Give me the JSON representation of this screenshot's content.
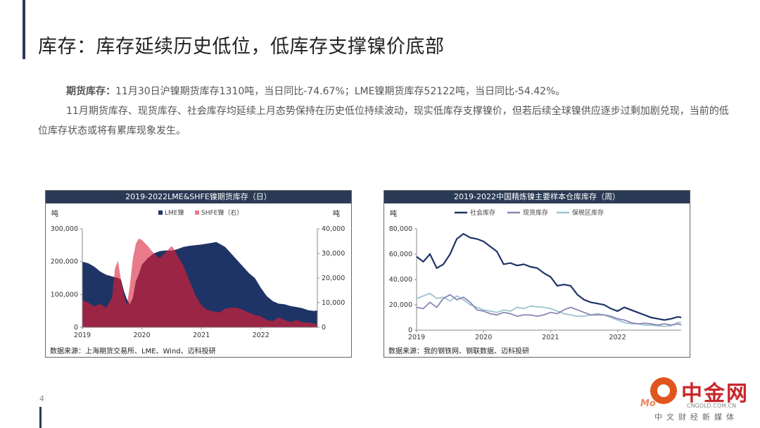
{
  "page": {
    "title": "库存：库存延续历史低位，低库存支撑镍价底部",
    "page_number": "4",
    "paragraph1_label": "期货库存：",
    "paragraph1_text": "11月30日沪镍期货库存1310吨，当日同比-74.67%；LME镍期货库存52122吨，当日同比-54.42%。",
    "paragraph2_text": "11月期货库存、现货库存、社会库存均延续上月态势保持在历史低位持续波动，现实低库存支撑镍价，但若后续全球镍供应逐步过剩加剧兑现，当前的低位库存状态或将有累库现象发生。"
  },
  "watermark": {
    "name": "中金网",
    "url": "CNGOLD.COM.CN",
    "subtitle": "中文财经新媒体",
    "overlay": "Mo"
  },
  "colors": {
    "header": "#2b3a55",
    "lme": "#1f3466",
    "shfe": "#e87a8a",
    "overlap": "#9a2545",
    "social": "#1f3466",
    "spot": "#8a86b6",
    "bonded": "#9ec3cf"
  },
  "chart_data": [
    {
      "type": "area",
      "title": "2019-2022LME&SHFE镍期货库存（日）",
      "source": "数据来源：上海期货交易所、LME、Wind、迈科投研",
      "left_unit": "吨",
      "right_unit": "吨",
      "x_range": [
        2019.0,
        2022.95
      ],
      "x_ticks": [
        2019,
        2020,
        2021,
        2022
      ],
      "y_left": {
        "range": [
          0,
          300000
        ],
        "ticks": [
          0,
          100000,
          200000,
          300000
        ],
        "tick_labels": [
          "0",
          "100,000",
          "200,000",
          "300,000"
        ]
      },
      "y_right": {
        "range": [
          0,
          40000
        ],
        "ticks": [
          0,
          10000,
          20000,
          30000,
          40000
        ],
        "tick_labels": [
          "0",
          "10,000",
          "20,000",
          "30,000",
          "40,000"
        ]
      },
      "legend": [
        "LME镍",
        "SHFE镍（右）"
      ],
      "series": [
        {
          "name": "LME镍",
          "axis": "left",
          "points": [
            [
              2019.0,
              200000
            ],
            [
              2019.1,
              195000
            ],
            [
              2019.2,
              185000
            ],
            [
              2019.3,
              170000
            ],
            [
              2019.4,
              160000
            ],
            [
              2019.5,
              155000
            ],
            [
              2019.6,
              150000
            ],
            [
              2019.65,
              145000
            ],
            [
              2019.7,
              110000
            ],
            [
              2019.75,
              85000
            ],
            [
              2019.8,
              70000
            ],
            [
              2019.85,
              90000
            ],
            [
              2019.9,
              140000
            ],
            [
              2019.95,
              160000
            ],
            [
              2020.0,
              190000
            ],
            [
              2020.1,
              210000
            ],
            [
              2020.2,
              225000
            ],
            [
              2020.3,
              232000
            ],
            [
              2020.4,
              234000
            ],
            [
              2020.5,
              233000
            ],
            [
              2020.6,
              238000
            ],
            [
              2020.7,
              245000
            ],
            [
              2020.8,
              248000
            ],
            [
              2020.9,
              250000
            ],
            [
              2021.0,
              252000
            ],
            [
              2021.1,
              255000
            ],
            [
              2021.2,
              258000
            ],
            [
              2021.25,
              260000
            ],
            [
              2021.3,
              255000
            ],
            [
              2021.4,
              245000
            ],
            [
              2021.5,
              225000
            ],
            [
              2021.6,
              205000
            ],
            [
              2021.7,
              185000
            ],
            [
              2021.8,
              165000
            ],
            [
              2021.9,
              150000
            ],
            [
              2022.0,
              120000
            ],
            [
              2022.1,
              95000
            ],
            [
              2022.2,
              80000
            ],
            [
              2022.3,
              72000
            ],
            [
              2022.4,
              70000
            ],
            [
              2022.5,
              65000
            ],
            [
              2022.6,
              62000
            ],
            [
              2022.7,
              58000
            ],
            [
              2022.8,
              52000
            ],
            [
              2022.9,
              50000
            ],
            [
              2022.95,
              52000
            ]
          ]
        },
        {
          "name": "SHFE镍（右）",
          "axis": "right",
          "points": [
            [
              2019.0,
              11000
            ],
            [
              2019.1,
              10000
            ],
            [
              2019.2,
              8500
            ],
            [
              2019.3,
              9500
            ],
            [
              2019.4,
              8000
            ],
            [
              2019.5,
              12000
            ],
            [
              2019.55,
              24000
            ],
            [
              2019.6,
              27000
            ],
            [
              2019.65,
              19000
            ],
            [
              2019.7,
              13000
            ],
            [
              2019.75,
              9000
            ],
            [
              2019.8,
              17000
            ],
            [
              2019.85,
              28000
            ],
            [
              2019.9,
              34000
            ],
            [
              2019.95,
              36000
            ],
            [
              2020.0,
              35500
            ],
            [
              2020.1,
              33000
            ],
            [
              2020.2,
              30000
            ],
            [
              2020.3,
              28000
            ],
            [
              2020.4,
              30500
            ],
            [
              2020.5,
              33000
            ],
            [
              2020.55,
              31500
            ],
            [
              2020.6,
              29000
            ],
            [
              2020.7,
              25000
            ],
            [
              2020.8,
              19000
            ],
            [
              2020.9,
              13000
            ],
            [
              2021.0,
              9000
            ],
            [
              2021.1,
              7000
            ],
            [
              2021.2,
              6500
            ],
            [
              2021.3,
              6000
            ],
            [
              2021.4,
              7500
            ],
            [
              2021.5,
              8000
            ],
            [
              2021.6,
              8000
            ],
            [
              2021.7,
              7000
            ],
            [
              2021.8,
              6000
            ],
            [
              2021.9,
              5000
            ],
            [
              2022.0,
              4500
            ],
            [
              2022.1,
              3000
            ],
            [
              2022.2,
              2500
            ],
            [
              2022.3,
              4000
            ],
            [
              2022.4,
              3000
            ],
            [
              2022.5,
              2000
            ],
            [
              2022.6,
              3000
            ],
            [
              2022.7,
              2000
            ],
            [
              2022.8,
              2000
            ],
            [
              2022.9,
              1500
            ],
            [
              2022.95,
              1310
            ]
          ]
        }
      ]
    },
    {
      "type": "line",
      "title": "2019-2022中国精炼镍主要样本仓库库存（周）",
      "source": "数据来源：我的钢铁网、钢联数据、迈科投研",
      "left_unit": "吨",
      "x_range": [
        2019.0,
        2022.95
      ],
      "x_ticks": [
        2019,
        2020,
        2021,
        2022
      ],
      "y_left": {
        "range": [
          0,
          80000
        ],
        "ticks": [
          0,
          20000,
          40000,
          60000,
          80000
        ],
        "tick_labels": [
          "0",
          "20,000",
          "40,000",
          "60,000",
          "80,000"
        ]
      },
      "legend": [
        "社会库存",
        "现货库存",
        "保税区库存"
      ],
      "series": [
        {
          "name": "社会库存",
          "points": [
            [
              2019.0,
              58000
            ],
            [
              2019.1,
              54000
            ],
            [
              2019.2,
              60000
            ],
            [
              2019.3,
              49000
            ],
            [
              2019.4,
              52000
            ],
            [
              2019.5,
              60000
            ],
            [
              2019.6,
              72000
            ],
            [
              2019.7,
              76000
            ],
            [
              2019.8,
              73000
            ],
            [
              2019.9,
              72000
            ],
            [
              2020.0,
              70000
            ],
            [
              2020.1,
              66000
            ],
            [
              2020.2,
              62000
            ],
            [
              2020.3,
              52000
            ],
            [
              2020.4,
              53000
            ],
            [
              2020.5,
              51000
            ],
            [
              2020.6,
              52000
            ],
            [
              2020.7,
              50000
            ],
            [
              2020.8,
              49000
            ],
            [
              2020.9,
              45000
            ],
            [
              2021.0,
              42000
            ],
            [
              2021.1,
              35000
            ],
            [
              2021.2,
              36000
            ],
            [
              2021.3,
              35000
            ],
            [
              2021.4,
              28000
            ],
            [
              2021.5,
              24000
            ],
            [
              2021.6,
              22000
            ],
            [
              2021.7,
              21000
            ],
            [
              2021.8,
              20000
            ],
            [
              2021.9,
              17000
            ],
            [
              2022.0,
              15000
            ],
            [
              2022.1,
              18000
            ],
            [
              2022.2,
              16000
            ],
            [
              2022.3,
              14000
            ],
            [
              2022.4,
              12000
            ],
            [
              2022.5,
              10000
            ],
            [
              2022.6,
              9000
            ],
            [
              2022.7,
              8000
            ],
            [
              2022.8,
              9000
            ],
            [
              2022.9,
              10500
            ],
            [
              2022.95,
              10000
            ]
          ]
        },
        {
          "name": "现货库存",
          "points": [
            [
              2019.0,
              18000
            ],
            [
              2019.1,
              17000
            ],
            [
              2019.2,
              22000
            ],
            [
              2019.3,
              18000
            ],
            [
              2019.4,
              25000
            ],
            [
              2019.5,
              28000
            ],
            [
              2019.6,
              24000
            ],
            [
              2019.7,
              26000
            ],
            [
              2019.8,
              22000
            ],
            [
              2019.9,
              16000
            ],
            [
              2020.0,
              15000
            ],
            [
              2020.1,
              13000
            ],
            [
              2020.2,
              12000
            ],
            [
              2020.3,
              14000
            ],
            [
              2020.4,
              13000
            ],
            [
              2020.5,
              11000
            ],
            [
              2020.6,
              12000
            ],
            [
              2020.7,
              12000
            ],
            [
              2020.8,
              11000
            ],
            [
              2020.9,
              12000
            ],
            [
              2021.0,
              14000
            ],
            [
              2021.1,
              13000
            ],
            [
              2021.2,
              16000
            ],
            [
              2021.3,
              18000
            ],
            [
              2021.4,
              16000
            ],
            [
              2021.5,
              14000
            ],
            [
              2021.6,
              12000
            ],
            [
              2021.7,
              12000
            ],
            [
              2021.8,
              12000
            ],
            [
              2021.9,
              11000
            ],
            [
              2022.0,
              9000
            ],
            [
              2022.1,
              8000
            ],
            [
              2022.2,
              6000
            ],
            [
              2022.3,
              5000
            ],
            [
              2022.4,
              5500
            ],
            [
              2022.5,
              5000
            ],
            [
              2022.6,
              4000
            ],
            [
              2022.7,
              5000
            ],
            [
              2022.8,
              4000
            ],
            [
              2022.9,
              5000
            ],
            [
              2022.95,
              4000
            ]
          ]
        },
        {
          "name": "保税区库存",
          "points": [
            [
              2019.0,
              25000
            ],
            [
              2019.1,
              27000
            ],
            [
              2019.2,
              29000
            ],
            [
              2019.3,
              25000
            ],
            [
              2019.4,
              26000
            ],
            [
              2019.5,
              23000
            ],
            [
              2019.6,
              27000
            ],
            [
              2019.7,
              24000
            ],
            [
              2019.8,
              20000
            ],
            [
              2019.9,
              18000
            ],
            [
              2020.0,
              16000
            ],
            [
              2020.1,
              15000
            ],
            [
              2020.2,
              14000
            ],
            [
              2020.3,
              16000
            ],
            [
              2020.4,
              15000
            ],
            [
              2020.5,
              18000
            ],
            [
              2020.6,
              17000
            ],
            [
              2020.7,
              19000
            ],
            [
              2020.8,
              18500
            ],
            [
              2020.9,
              18000
            ],
            [
              2021.0,
              17000
            ],
            [
              2021.1,
              15000
            ],
            [
              2021.2,
              13000
            ],
            [
              2021.3,
              12000
            ],
            [
              2021.4,
              11000
            ],
            [
              2021.5,
              11000
            ],
            [
              2021.6,
              12000
            ],
            [
              2021.7,
              13000
            ],
            [
              2021.8,
              12000
            ],
            [
              2021.9,
              10000
            ],
            [
              2022.0,
              8000
            ],
            [
              2022.1,
              6000
            ],
            [
              2022.2,
              5000
            ],
            [
              2022.3,
              5000
            ],
            [
              2022.4,
              4000
            ],
            [
              2022.5,
              4000
            ],
            [
              2022.6,
              3500
            ],
            [
              2022.7,
              3000
            ],
            [
              2022.8,
              3500
            ],
            [
              2022.9,
              6000
            ],
            [
              2022.95,
              6000
            ]
          ]
        }
      ]
    }
  ]
}
